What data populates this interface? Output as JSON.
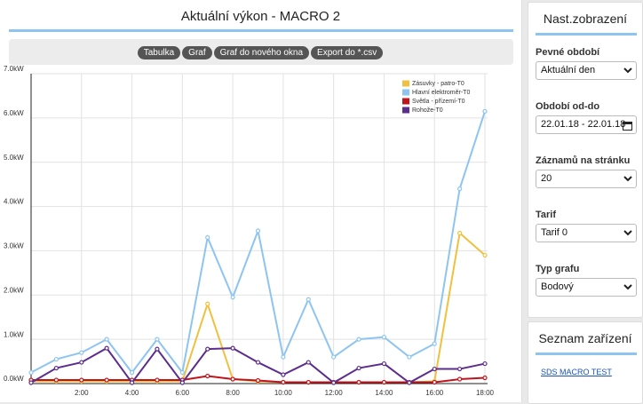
{
  "header": {
    "title": "Aktuální výkon - MACRO 2"
  },
  "buttons": [
    "Tabulka",
    "Graf",
    "Graf do nového okna",
    "Export do *.csv"
  ],
  "chart_data": {
    "type": "line",
    "x": [
      0,
      1,
      2,
      3,
      4,
      5,
      6,
      7,
      8,
      9,
      10,
      11,
      12,
      13,
      14,
      15,
      16,
      17,
      18
    ],
    "xlim": [
      0,
      18
    ],
    "xticks": [
      {
        "value": 2,
        "label": "2:00"
      },
      {
        "value": 4,
        "label": "4:00"
      },
      {
        "value": 6,
        "label": "6:00"
      },
      {
        "value": 8,
        "label": "8:00"
      },
      {
        "value": 10,
        "label": "10:00"
      },
      {
        "value": 12,
        "label": "12:00"
      },
      {
        "value": 14,
        "label": "14:00"
      },
      {
        "value": 16,
        "label": "16:00"
      },
      {
        "value": 18,
        "label": "18:00"
      }
    ],
    "ylim": [
      0,
      7
    ],
    "yticks": [
      {
        "value": 0,
        "label": "0.0kW"
      },
      {
        "value": 1,
        "label": "1.0kW"
      },
      {
        "value": 2,
        "label": "2.0kW"
      },
      {
        "value": 3,
        "label": "3.0kW"
      },
      {
        "value": 4,
        "label": "4.0kW"
      },
      {
        "value": 5,
        "label": "5.0kW"
      },
      {
        "value": 6,
        "label": "6.0kW"
      },
      {
        "value": 7,
        "label": "7.0kW"
      }
    ],
    "grid": true,
    "legend": "top-right",
    "series": [
      {
        "name": "Zásuvky - patro-T0",
        "color": "#f0c040",
        "values": [
          0.05,
          0.05,
          0.05,
          0.05,
          0.05,
          0.05,
          0.05,
          1.8,
          0.1,
          0.05,
          0.03,
          0.03,
          0.03,
          0.03,
          0.03,
          0.03,
          0.05,
          3.4,
          2.9
        ]
      },
      {
        "name": "Hlavní elektroměr-T0",
        "color": "#8ec5f0",
        "values": [
          0.25,
          0.55,
          0.7,
          1.0,
          0.25,
          1.0,
          0.25,
          3.3,
          1.95,
          3.45,
          0.6,
          1.9,
          0.6,
          1.0,
          1.05,
          0.6,
          0.9,
          4.4,
          6.15
        ]
      },
      {
        "name": "Světla - přízemí-T0",
        "color": "#c0141c",
        "values": [
          0.08,
          0.08,
          0.08,
          0.08,
          0.08,
          0.08,
          0.08,
          0.17,
          0.1,
          0.07,
          0.03,
          0.03,
          0.03,
          0.03,
          0.03,
          0.03,
          0.03,
          0.1,
          0.13
        ]
      },
      {
        "name": "Rohože-T0",
        "color": "#5c2d8c",
        "values": [
          0.02,
          0.35,
          0.48,
          0.8,
          0.02,
          0.78,
          0.02,
          0.78,
          0.8,
          0.48,
          0.2,
          0.48,
          0.02,
          0.35,
          0.45,
          0.02,
          0.33,
          0.33,
          0.45
        ]
      }
    ]
  },
  "sidebar": {
    "title": "Nast.zobrazení",
    "fields": [
      {
        "label": "Pevné období",
        "value": "Aktuální den"
      },
      {
        "label": "Období od-do",
        "value": "22.01.18 - 22.01.18"
      },
      {
        "label": "Záznamů na stránku",
        "value": "20"
      },
      {
        "label": "Tarif",
        "value": "Tarif 0"
      },
      {
        "label": "Typ grafu",
        "value": "Bodový"
      }
    ]
  },
  "devices": {
    "title": "Seznam zařízení",
    "items": [
      "SDS MACRO TEST"
    ]
  }
}
